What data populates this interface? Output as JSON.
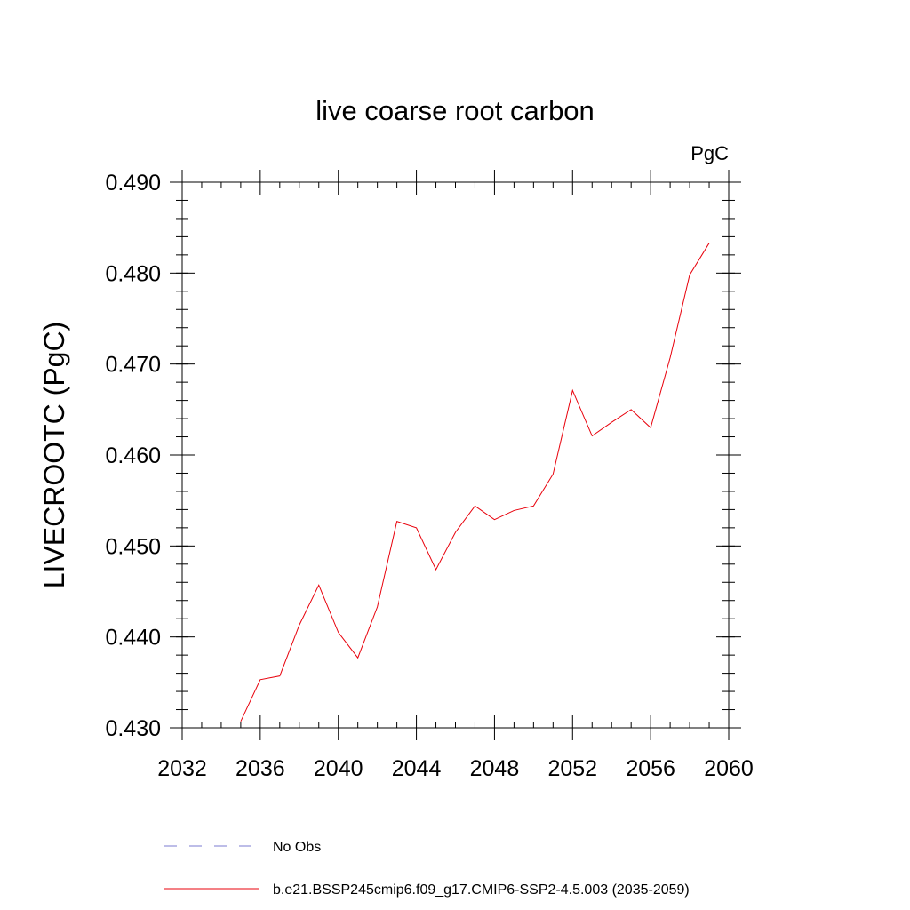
{
  "chart_data": {
    "type": "line",
    "title": "live coarse root carbon",
    "units_label": "PgC",
    "xlabel": "",
    "ylabel": "LIVECROOTC  (PgC)",
    "xlim": [
      2032,
      2060
    ],
    "ylim": [
      0.43,
      0.49
    ],
    "x_ticks": [
      2032,
      2036,
      2040,
      2044,
      2048,
      2052,
      2056,
      2060
    ],
    "x_tick_labels": [
      "2032",
      "2036",
      "2040",
      "2044",
      "2048",
      "2052",
      "2056",
      "2060"
    ],
    "y_ticks": [
      0.43,
      0.44,
      0.45,
      0.46,
      0.47,
      0.48,
      0.49
    ],
    "y_tick_labels": [
      "0.430",
      "0.440",
      "0.450",
      "0.460",
      "0.470",
      "0.480",
      "0.490"
    ],
    "grid": false,
    "legend_position": "bottom",
    "series": [
      {
        "name": "b.e21.BSSP245cmip6.f09_g17.CMIP6-SSP2-4.5.003 (2035-2059)",
        "color": "#e8000b",
        "x": [
          2035,
          2036,
          2037,
          2038,
          2039,
          2040,
          2041,
          2042,
          2043,
          2044,
          2045,
          2046,
          2047,
          2048,
          2049,
          2050,
          2051,
          2052,
          2053,
          2054,
          2055,
          2056,
          2057,
          2058,
          2059
        ],
        "y": [
          0.4307,
          0.4353,
          0.4357,
          0.4413,
          0.4457,
          0.4405,
          0.4377,
          0.4433,
          0.4527,
          0.452,
          0.4474,
          0.4515,
          0.4544,
          0.4529,
          0.4539,
          0.4544,
          0.4579,
          0.4671,
          0.4621,
          0.4636,
          0.465,
          0.463,
          0.4707,
          0.4798,
          0.4833
        ]
      }
    ],
    "legend_entries": [
      {
        "label": "No Obs",
        "color": "#7b7bd0",
        "style": "dashed"
      },
      {
        "label": "b.e21.BSSP245cmip6.f09_g17.CMIP6-SSP2-4.5.003 (2035-2059)",
        "color": "#e8000b",
        "style": "solid"
      }
    ]
  }
}
